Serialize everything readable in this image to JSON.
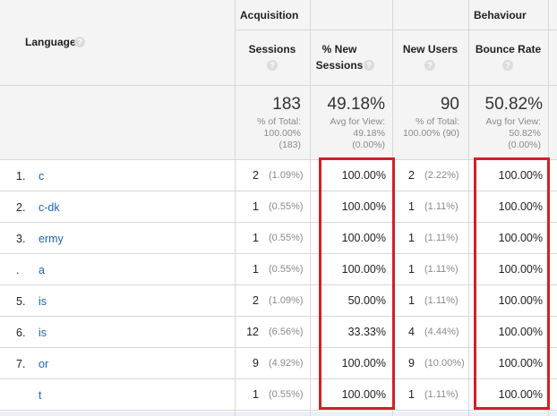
{
  "header": {
    "group_acquisition": "Acquisition",
    "group_behaviour": "Behaviour",
    "language_label": "Language",
    "help_glyph": "?",
    "columns": {
      "sessions": "Sessions",
      "new_sessions_1": "% New",
      "new_sessions_2": "Sessions",
      "new_users": "New Users",
      "bounce_rate": "Bounce Rate"
    }
  },
  "totals": {
    "sessions": {
      "value": "183",
      "line1": "% of Total:",
      "line2": "100.00%",
      "line3": "(183)"
    },
    "new_sessions": {
      "value": "49.18%",
      "line1": "Avg for View:",
      "line2": "49.18%",
      "line3": "(0.00%)"
    },
    "new_users": {
      "value": "90",
      "line1": "% of Total:",
      "line2": "100.00% (90)"
    },
    "bounce_rate": {
      "value": "50.82%",
      "line1": "Avg for View:",
      "line2": "50.82%",
      "line3": "(0.00%)"
    }
  },
  "rows": [
    {
      "index": "1.",
      "language": "c",
      "sessions": "2",
      "sessions_pct": "(1.09%)",
      "new_sessions": "100.00%",
      "new_users": "2",
      "new_users_pct": "(2.22%)",
      "bounce_rate": "100.00%"
    },
    {
      "index": "2.",
      "language": "c-dk",
      "sessions": "1",
      "sessions_pct": "(0.55%)",
      "new_sessions": "100.00%",
      "new_users": "1",
      "new_users_pct": "(1.11%)",
      "bounce_rate": "100.00%"
    },
    {
      "index": "3.",
      "language": "ermy",
      "sessions": "1",
      "sessions_pct": "(0.55%)",
      "new_sessions": "100.00%",
      "new_users": "1",
      "new_users_pct": "(1.11%)",
      "bounce_rate": "100.00%"
    },
    {
      "index": ".",
      "language": "a",
      "sessions": "1",
      "sessions_pct": "(0.55%)",
      "new_sessions": "100.00%",
      "new_users": "1",
      "new_users_pct": "(1.11%)",
      "bounce_rate": "100.00%"
    },
    {
      "index": "5.",
      "language": "is",
      "sessions": "2",
      "sessions_pct": "(1.09%)",
      "new_sessions": "50.00%",
      "new_users": "1",
      "new_users_pct": "(1.11%)",
      "bounce_rate": "100.00%"
    },
    {
      "index": "6.",
      "language": "is",
      "sessions": "12",
      "sessions_pct": "(6.56%)",
      "new_sessions": "33.33%",
      "new_users": "4",
      "new_users_pct": "(4.44%)",
      "bounce_rate": "100.00%"
    },
    {
      "index": "7.",
      "language": "or",
      "sessions": "9",
      "sessions_pct": "(4.92%)",
      "new_sessions": "100.00%",
      "new_users": "9",
      "new_users_pct": "(10.00%)",
      "bounce_rate": "100.00%"
    },
    {
      "index": "",
      "language": "t",
      "sessions": "1",
      "sessions_pct": "(0.55%)",
      "new_sessions": "100.00%",
      "new_users": "1",
      "new_users_pct": "(1.11%)",
      "bounce_rate": "100.00%"
    }
  ],
  "colors": {
    "link": "#1a65b5",
    "highlight": "#d21f26",
    "header_bg": "#f4f4f4",
    "grid": "#d7d7d7"
  }
}
